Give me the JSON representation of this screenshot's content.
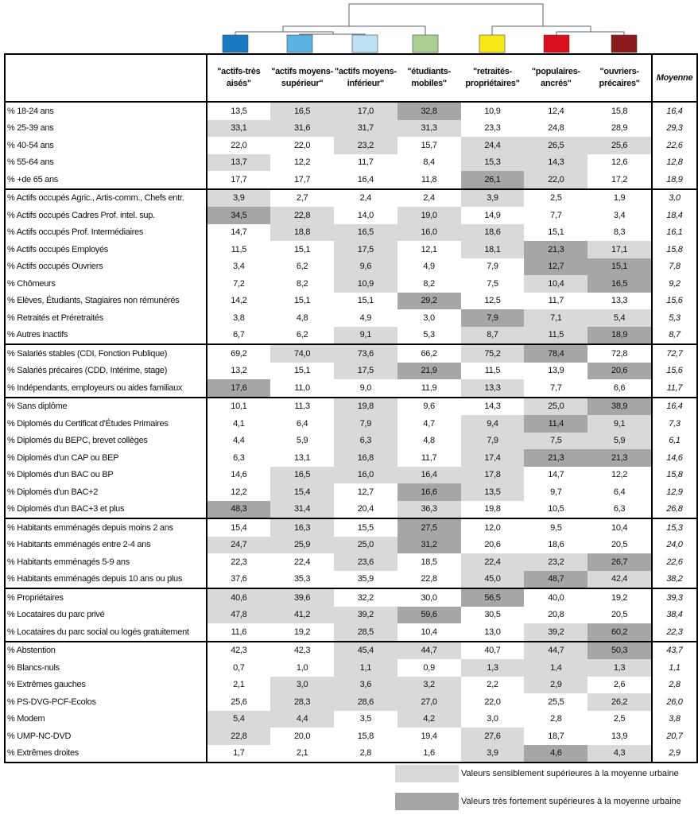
{
  "clusters": [
    {
      "label": "\"actifs-très aisés\"",
      "color": "#1a7abf"
    },
    {
      "label": "\"actifs moyens-supérieur\"",
      "color": "#5cb3e3"
    },
    {
      "label": "\"actifs moyens-inférieur\"",
      "color": "#bde2f5"
    },
    {
      "label": "\"étudiants-mobiles\"",
      "color": "#a9cf93"
    },
    {
      "label": "\"retraités-propriétaires\"",
      "color": "#f7e81a"
    },
    {
      "label": "\"populaires-ancrés\"",
      "color": "#d9101e"
    },
    {
      "label": "\"ouvriers-précaires\"",
      "color": "#8a1a1c"
    }
  ],
  "mean_label": "Moyenne",
  "shade_colors": {
    "1": "#d9d9d9",
    "2": "#a6a6a6"
  },
  "groups": [
    [
      {
        "label": "% 18-24 ans",
        "values": [
          "13,5",
          "16,5",
          "17,0",
          "32,8",
          "10,9",
          "12,4",
          "15,8"
        ],
        "mean": "16,4",
        "shade": [
          0,
          1,
          1,
          2,
          0,
          0,
          0
        ]
      },
      {
        "label": "% 25-39 ans",
        "values": [
          "33,1",
          "31,6",
          "31,7",
          "31,3",
          "23,3",
          "24,8",
          "28,9"
        ],
        "mean": "29,3",
        "shade": [
          1,
          1,
          1,
          1,
          0,
          0,
          0
        ]
      },
      {
        "label": "% 40-54 ans",
        "values": [
          "22,0",
          "22,0",
          "23,2",
          "15,7",
          "24,4",
          "26,5",
          "25,6"
        ],
        "mean": "22,6",
        "shade": [
          0,
          0,
          1,
          0,
          1,
          1,
          1
        ]
      },
      {
        "label": "% 55-64 ans",
        "values": [
          "13,7",
          "12,2",
          "11,7",
          "8,4",
          "15,3",
          "14,3",
          "12,6"
        ],
        "mean": "12,8",
        "shade": [
          1,
          0,
          0,
          0,
          1,
          1,
          0
        ]
      },
      {
        "label": "% +de 65 ans",
        "values": [
          "17,7",
          "17,7",
          "16,4",
          "11,8",
          "26,1",
          "22,0",
          "17,2"
        ],
        "mean": "18,9",
        "shade": [
          0,
          0,
          0,
          0,
          2,
          1,
          0
        ]
      }
    ],
    [
      {
        "label": "% Actifs occupés Agric., Artis-comm., Chefs entr.",
        "values": [
          "3,9",
          "2,7",
          "2,4",
          "2,4",
          "3,9",
          "2,5",
          "1,9"
        ],
        "mean": "3,0",
        "shade": [
          1,
          0,
          0,
          0,
          1,
          0,
          0
        ]
      },
      {
        "label": "% Actifs occupés Cadres Prof. intel. sup.",
        "values": [
          "34,5",
          "22,8",
          "14,0",
          "19,0",
          "14,9",
          "7,7",
          "3,4"
        ],
        "mean": "18,4",
        "shade": [
          2,
          1,
          0,
          1,
          0,
          0,
          0
        ]
      },
      {
        "label": "% Actifs occupés  Prof. Intermédiaires",
        "values": [
          "14,7",
          "18,8",
          "16,5",
          "16,0",
          "18,6",
          "15,1",
          "8,3"
        ],
        "mean": "16,1",
        "shade": [
          0,
          1,
          1,
          1,
          1,
          0,
          0
        ]
      },
      {
        "label": "% Actifs occupés Employés",
        "values": [
          "11,5",
          "15,1",
          "17,5",
          "12,1",
          "18,1",
          "21,3",
          "17,1"
        ],
        "mean": "15,8",
        "shade": [
          0,
          0,
          1,
          0,
          1,
          2,
          1
        ]
      },
      {
        "label": "% Actifs occupés Ouvriers",
        "values": [
          "3,4",
          "6,2",
          "9,6",
          "4,9",
          "7,9",
          "12,7",
          "15,1"
        ],
        "mean": "7,8",
        "shade": [
          0,
          0,
          1,
          0,
          0,
          2,
          2
        ]
      },
      {
        "label": "% Chômeurs",
        "values": [
          "7,2",
          "8,2",
          "10,9",
          "8,2",
          "7,5",
          "10,4",
          "16,5"
        ],
        "mean": "9,2",
        "shade": [
          0,
          0,
          1,
          0,
          0,
          1,
          2
        ]
      },
      {
        "label": "% Elèves, Étudiants, Stagiaires non rémunérés",
        "values": [
          "14,2",
          "15,1",
          "15,1",
          "29,2",
          "12,5",
          "11,7",
          "13,3"
        ],
        "mean": "15,6",
        "shade": [
          0,
          0,
          0,
          2,
          0,
          0,
          0
        ]
      },
      {
        "label": "% Retraités et Préretraités",
        "values": [
          "3,8",
          "4,8",
          "4,9",
          "3,0",
          "7,9",
          "7,1",
          "5,4"
        ],
        "mean": "5,3",
        "shade": [
          0,
          0,
          0,
          0,
          2,
          1,
          1
        ]
      },
      {
        "label": "% Autres inactifs",
        "values": [
          "6,7",
          "6,2",
          "9,1",
          "5,3",
          "8,7",
          "11,5",
          "18,9"
        ],
        "mean": "8,7",
        "shade": [
          0,
          0,
          1,
          0,
          1,
          1,
          2
        ]
      }
    ],
    [
      {
        "label": "% Salariés stables (CDI, Fonction Publique)",
        "values": [
          "69,2",
          "74,0",
          "73,6",
          "66,2",
          "75,2",
          "78,4",
          "72,8"
        ],
        "mean": "72,7",
        "shade": [
          0,
          1,
          1,
          0,
          1,
          2,
          0
        ]
      },
      {
        "label": "% Salariés précaires (CDD, Intérime, stage)",
        "values": [
          "13,2",
          "15,1",
          "17,5",
          "21,9",
          "11,5",
          "13,9",
          "20,6"
        ],
        "mean": "15,6",
        "shade": [
          0,
          0,
          1,
          2,
          0,
          0,
          2
        ]
      },
      {
        "label": "% Indépendants, employeurs ou aides familiaux",
        "values": [
          "17,6",
          "11,0",
          "9,0",
          "11,9",
          "13,3",
          "7,7",
          "6,6"
        ],
        "mean": "11,7",
        "shade": [
          2,
          0,
          0,
          0,
          1,
          0,
          0
        ]
      }
    ],
    [
      {
        "label": "% Sans diplôme",
        "values": [
          "10,1",
          "11,3",
          "19,8",
          "9,6",
          "14,3",
          "25,0",
          "38,9"
        ],
        "mean": "16,4",
        "shade": [
          0,
          0,
          1,
          0,
          0,
          1,
          2
        ]
      },
      {
        "label": "% Diplomés du Certificat d'Études Primaires",
        "values": [
          "4,1",
          "6,4",
          "7,9",
          "4,7",
          "9,4",
          "11,4",
          "9,1"
        ],
        "mean": "7,3",
        "shade": [
          0,
          0,
          1,
          0,
          1,
          2,
          1
        ]
      },
      {
        "label": "% Diplomés du BEPC, brevet collèges",
        "values": [
          "4,4",
          "5,9",
          "6,3",
          "4,8",
          "7,9",
          "7,5",
          "5,9"
        ],
        "mean": "6,1",
        "shade": [
          0,
          0,
          1,
          0,
          1,
          1,
          1
        ]
      },
      {
        "label": "% Diplomés d'un CAP ou BEP",
        "values": [
          "6,3",
          "13,1",
          "16,8",
          "11,7",
          "17,4",
          "21,3",
          "21,3"
        ],
        "mean": "14,6",
        "shade": [
          0,
          0,
          1,
          0,
          1,
          2,
          2
        ]
      },
      {
        "label": "% Diplomés d'un BAC ou BP",
        "values": [
          "14,6",
          "16,5",
          "16,0",
          "16,4",
          "17,8",
          "14,7",
          "12,2"
        ],
        "mean": "15,8",
        "shade": [
          0,
          1,
          1,
          1,
          1,
          0,
          0
        ]
      },
      {
        "label": "% Diplomés d'un BAC+2",
        "values": [
          "12,2",
          "15,4",
          "12,7",
          "16,6",
          "13,5",
          "9,7",
          "6,4"
        ],
        "mean": "12,9",
        "shade": [
          0,
          1,
          0,
          2,
          1,
          0,
          0
        ]
      },
      {
        "label": "% Diplomés d'un BAC+3 et plus",
        "values": [
          "48,3",
          "31,4",
          "20,4",
          "36,3",
          "19,8",
          "10,5",
          "6,3"
        ],
        "mean": "26,8",
        "shade": [
          2,
          1,
          0,
          1,
          0,
          0,
          0
        ]
      }
    ],
    [
      {
        "label": "% Habitants emménagés depuis moins 2 ans",
        "values": [
          "15,4",
          "16,3",
          "15,5",
          "27,5",
          "12,0",
          "9,5",
          "10,4"
        ],
        "mean": "15,3",
        "shade": [
          0,
          1,
          0,
          2,
          0,
          0,
          0
        ]
      },
      {
        "label": "% Habitants emménagés entre 2-4 ans",
        "values": [
          "24,7",
          "25,9",
          "25,0",
          "31,2",
          "20,6",
          "18,6",
          "20,5"
        ],
        "mean": "24,0",
        "shade": [
          1,
          1,
          1,
          2,
          0,
          0,
          0
        ]
      },
      {
        "label": "% Habitants emménagés 5-9 ans",
        "values": [
          "22,3",
          "22,4",
          "23,6",
          "18,5",
          "22,4",
          "23,2",
          "26,7"
        ],
        "mean": "22,6",
        "shade": [
          0,
          0,
          1,
          0,
          1,
          1,
          2
        ]
      },
      {
        "label": "% Habitants emménagés depuis 10 ans ou plus",
        "values": [
          "37,6",
          "35,3",
          "35,9",
          "22,8",
          "45,0",
          "48,7",
          "42,4"
        ],
        "mean": "38,2",
        "shade": [
          0,
          0,
          0,
          0,
          1,
          2,
          1
        ]
      }
    ],
    [
      {
        "label": "% Propriétaires",
        "values": [
          "40,6",
          "39,6",
          "32,2",
          "30,0",
          "56,5",
          "40,0",
          "19,2"
        ],
        "mean": "39,3",
        "shade": [
          1,
          1,
          0,
          0,
          2,
          0,
          0
        ]
      },
      {
        "label": "% Locataires du parc privé",
        "values": [
          "47,8",
          "41,2",
          "39,2",
          "59,6",
          "30,5",
          "20,8",
          "20,5"
        ],
        "mean": "38,4",
        "shade": [
          1,
          1,
          1,
          2,
          0,
          0,
          0
        ]
      },
      {
        "label": "% Locataires du parc social ou logés gratuitement",
        "values": [
          "11,6",
          "19,2",
          "28,5",
          "10,4",
          "13,0",
          "39,2",
          "60,2"
        ],
        "mean": "22,3",
        "shade": [
          0,
          0,
          1,
          0,
          0,
          1,
          2
        ]
      }
    ],
    [
      {
        "label": "% Abstention",
        "values": [
          "42,3",
          "42,3",
          "45,4",
          "44,7",
          "40,7",
          "44,7",
          "50,3"
        ],
        "mean": "43,7",
        "shade": [
          0,
          0,
          1,
          1,
          0,
          1,
          2
        ]
      },
      {
        "label": "% Blancs-nuls",
        "values": [
          "0,7",
          "1,0",
          "1,1",
          "0,9",
          "1,3",
          "1,4",
          "1,3"
        ],
        "mean": "1,1",
        "shade": [
          0,
          0,
          1,
          0,
          1,
          1,
          1
        ]
      },
      {
        "label": "% Extrêmes gauches",
        "values": [
          "2,1",
          "3,0",
          "3,6",
          "3,2",
          "2,2",
          "2,9",
          "2,6"
        ],
        "mean": "2,8",
        "shade": [
          0,
          1,
          1,
          1,
          0,
          1,
          0
        ]
      },
      {
        "label": "% PS-DVG-PCF-Ecolos",
        "values": [
          "25,6",
          "28,3",
          "28,6",
          "27,0",
          "22,0",
          "25,5",
          "26,2"
        ],
        "mean": "26,0",
        "shade": [
          0,
          1,
          1,
          1,
          0,
          0,
          1
        ]
      },
      {
        "label": "% Modem",
        "values": [
          "5,4",
          "4,4",
          "3,5",
          "4,2",
          "3,0",
          "2,8",
          "2,5"
        ],
        "mean": "3,8",
        "shade": [
          1,
          1,
          0,
          1,
          0,
          0,
          0
        ]
      },
      {
        "label": "% UMP-NC-DVD",
        "values": [
          "22,8",
          "20,0",
          "15,8",
          "19,4",
          "27,6",
          "18,7",
          "13,9"
        ],
        "mean": "20,7",
        "shade": [
          1,
          0,
          0,
          0,
          1,
          0,
          0
        ]
      },
      {
        "label": "% Extrêmes droites",
        "values": [
          "1,7",
          "2,1",
          "2,8",
          "1,6",
          "3,9",
          "4,6",
          "4,3"
        ],
        "mean": "2,9",
        "shade": [
          0,
          0,
          0,
          0,
          1,
          2,
          1
        ]
      }
    ]
  ],
  "legend": {
    "light": "Valeurs sensiblement supérieures à la moyenne urbaine",
    "dark": "Valeurs très fortement supérieures à la moyenne urbaine"
  }
}
